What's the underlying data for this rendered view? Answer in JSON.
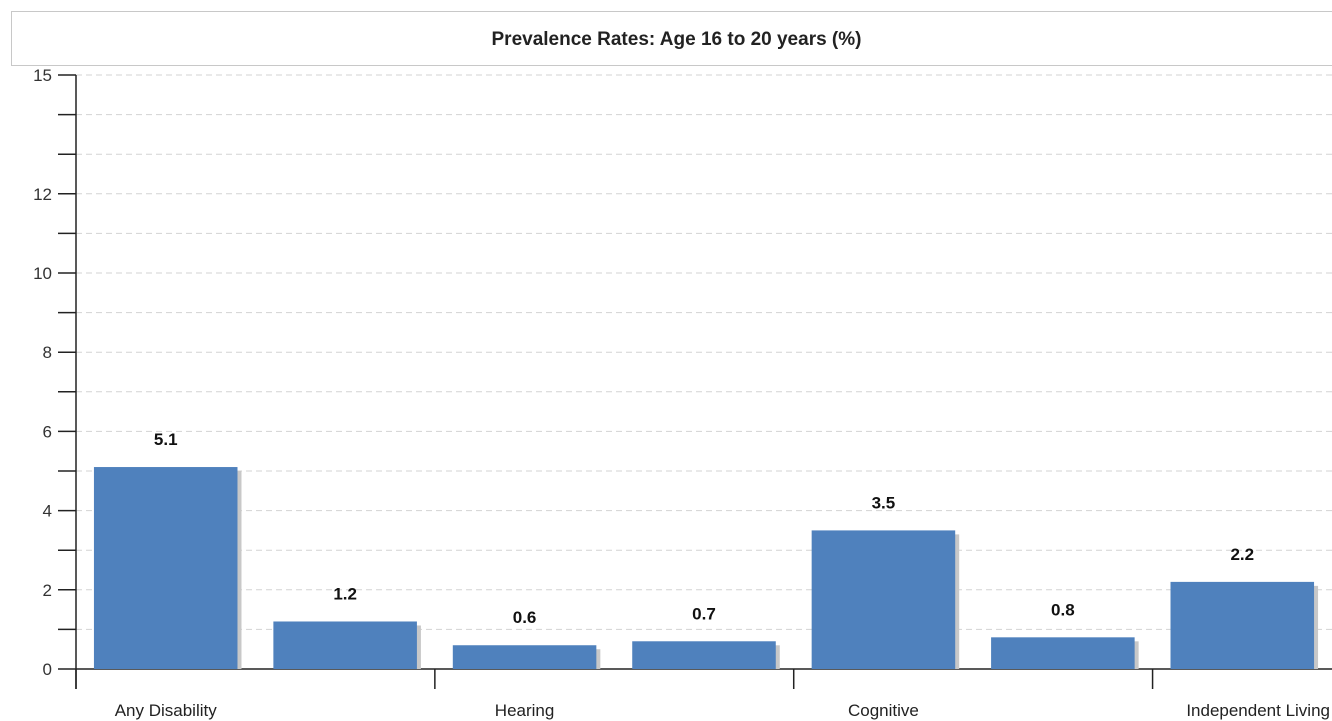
{
  "chart_data": {
    "type": "bar",
    "title": "Prevalence Rates: Age 16 to 20 years (%)",
    "categories": [
      "Any Disability",
      "",
      "Hearing",
      "",
      "Cognitive",
      "",
      "Independent Living"
    ],
    "values": [
      5.1,
      1.2,
      0.6,
      0.7,
      3.5,
      0.8,
      2.2
    ],
    "data_labels": [
      "5.1",
      "1.2",
      "0.6",
      "0.7",
      "3.5",
      "0.8",
      "2.2"
    ],
    "ylim": [
      0,
      15
    ],
    "yticks": [
      0,
      2,
      4,
      6,
      8,
      10,
      12,
      15
    ],
    "ytick_labels": [
      "0",
      "2",
      "4",
      "6",
      "8",
      "10",
      "12",
      "15"
    ],
    "grid": true,
    "bar_color": "#4f81bd",
    "shadow_color": "#c8c8c8",
    "grid_color": "#d3d3d3"
  }
}
